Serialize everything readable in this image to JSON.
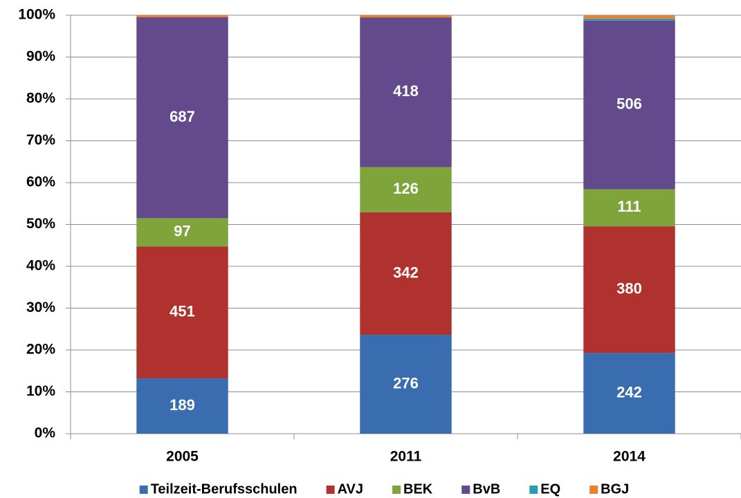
{
  "chart_data": {
    "type": "bar",
    "stacking": "percent",
    "categories": [
      "2005",
      "2011",
      "2014"
    ],
    "series": [
      {
        "name": "Teilzeit-Berufsschulen",
        "color": "#3a6db0",
        "values": [
          189,
          276,
          242
        ],
        "data_labels": true
      },
      {
        "name": "AVJ",
        "color": "#b0322f",
        "values": [
          451,
          342,
          380
        ],
        "data_labels": true
      },
      {
        "name": "BEK",
        "color": "#7fa43c",
        "values": [
          97,
          126,
          111
        ],
        "data_labels": true
      },
      {
        "name": "BvB",
        "color": "#634a8c",
        "values": [
          687,
          418,
          506
        ],
        "data_labels": true
      },
      {
        "name": "EQ",
        "color": "#2e9bb6",
        "values": [
          0,
          0,
          6
        ],
        "data_labels": false
      },
      {
        "name": "BGJ",
        "color": "#ea812c",
        "values": [
          7,
          6,
          10
        ],
        "data_labels": false
      }
    ],
    "ylim": [
      0,
      100
    ],
    "yticks": [
      {
        "value": 0,
        "label": "0%"
      },
      {
        "value": 10,
        "label": "10%"
      },
      {
        "value": 20,
        "label": "20%"
      },
      {
        "value": 30,
        "label": "30%"
      },
      {
        "value": 40,
        "label": "40%"
      },
      {
        "value": 50,
        "label": "50%"
      },
      {
        "value": 60,
        "label": "60%"
      },
      {
        "value": 70,
        "label": "70%"
      },
      {
        "value": 80,
        "label": "80%"
      },
      {
        "value": 90,
        "label": "90%"
      },
      {
        "value": 100,
        "label": "100%"
      }
    ],
    "grid": true,
    "legend": "bottom"
  }
}
